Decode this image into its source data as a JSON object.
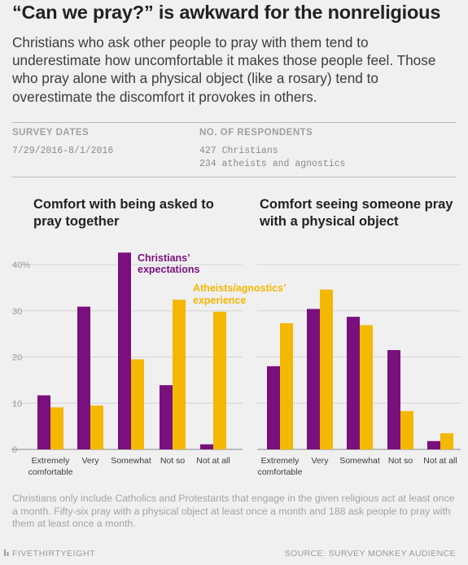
{
  "header": {
    "title": "“Can we pray?” is awkward for the nonreligious",
    "subtitle": "Christians who ask other people to pray with them tend to underestimate how uncomfortable it makes those people feel. Those who pray alone with a physical object (like a rosary) tend to overestimate the discomfort it provokes in others."
  },
  "meta": {
    "survey_dates_label": "SURVEY DATES",
    "survey_dates_value": "7/29/2016-8/1/2016",
    "respondents_label": "NO. OF RESPONDENTS",
    "respondents_line1": "427 Christians",
    "respondents_line2": "234 atheists and agnostics"
  },
  "colors": {
    "christians": "#7a0f7e",
    "atheists": "#f4b800",
    "axis_text": "#9a9a9a",
    "grid": "#d4d4d4"
  },
  "chart_data": [
    {
      "type": "bar",
      "title": "Comfort with being asked to pray together",
      "categories": [
        "Extremely comfortable",
        "Very",
        "Somewhat",
        "Not so",
        "Not at all"
      ],
      "series": [
        {
          "name": "Christians’ expectations",
          "values": [
            11.7,
            30.9,
            42.6,
            13.9,
            1.1
          ]
        },
        {
          "name": "Atheists/agnostics’ experience",
          "values": [
            9.1,
            9.5,
            19.5,
            32.4,
            29.8
          ]
        }
      ],
      "yticks": [
        "40%",
        "30",
        "20",
        "10",
        "0"
      ],
      "ylim": [
        0,
        45
      ],
      "grid": true
    },
    {
      "type": "bar",
      "title": "Comfort seeing someone pray with a physical object",
      "categories": [
        "Extremely comfortable",
        "Very",
        "Somewhat",
        "Not so",
        "Not at all"
      ],
      "series": [
        {
          "name": "Christians’ expectations",
          "values": [
            18.0,
            30.4,
            28.7,
            21.5,
            1.8
          ]
        },
        {
          "name": "Atheists/agnostics’ experience",
          "values": [
            27.3,
            34.6,
            26.9,
            8.3,
            3.5
          ]
        }
      ],
      "ylim": [
        0,
        45
      ],
      "grid": true
    }
  ],
  "footnote": "Christians only include Catholics and Protestants that engage in the given religious act at least once a month. Fifty-six pray with a physical object at least once a month and 188 ask people to pray with them at least once a month.",
  "footer": {
    "brand": "FIVETHIRTYEIGHT",
    "source": "SOURCE: SURVEY MONKEY AUDIENCE"
  }
}
